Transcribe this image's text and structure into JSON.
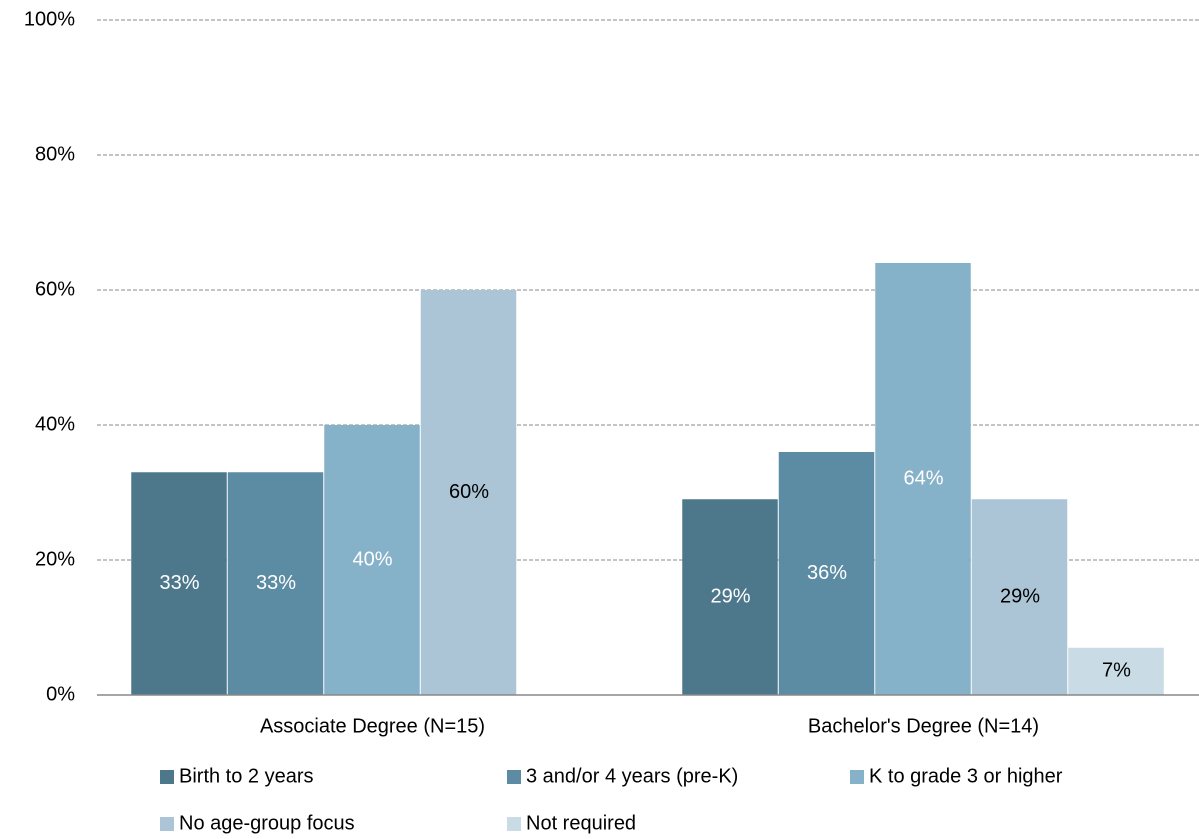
{
  "chart_data": {
    "type": "bar",
    "categories": [
      "Associate Degree (N=15)",
      "Bachelor's Degree (N=14)"
    ],
    "series": [
      {
        "name": "Birth to 2 years",
        "color": "#4d788c",
        "values": [
          33,
          29
        ],
        "value_labels": [
          "33%",
          "29%"
        ],
        "label_color": "#ffffff"
      },
      {
        "name": "3 and/or 4 years (pre-K)",
        "color": "#5b8ca3",
        "values": [
          33,
          36
        ],
        "value_labels": [
          "33%",
          "36%"
        ],
        "label_color": "#ffffff"
      },
      {
        "name": "K to grade 3 or higher",
        "color": "#86b2c9",
        "values": [
          40,
          64
        ],
        "value_labels": [
          "40%",
          "64%"
        ],
        "label_color": "#ffffff"
      },
      {
        "name": "No age-group focus",
        "color": "#abc5d6",
        "values": [
          60,
          29
        ],
        "value_labels": [
          "60%",
          "29%"
        ],
        "label_color": "#000000"
      },
      {
        "name": "Not required",
        "color": "#c9dbe5",
        "values": [
          null,
          7
        ],
        "value_labels": [
          null,
          "7%"
        ],
        "label_color": "#000000"
      }
    ],
    "ylim": [
      0,
      100
    ],
    "yticks": [
      {
        "value": 0,
        "label": "0%"
      },
      {
        "value": 20,
        "label": "20%"
      },
      {
        "value": 40,
        "label": "40%"
      },
      {
        "value": 60,
        "label": "60%"
      },
      {
        "value": 80,
        "label": "80%"
      },
      {
        "value": 100,
        "label": "100%"
      }
    ],
    "grid": true
  }
}
